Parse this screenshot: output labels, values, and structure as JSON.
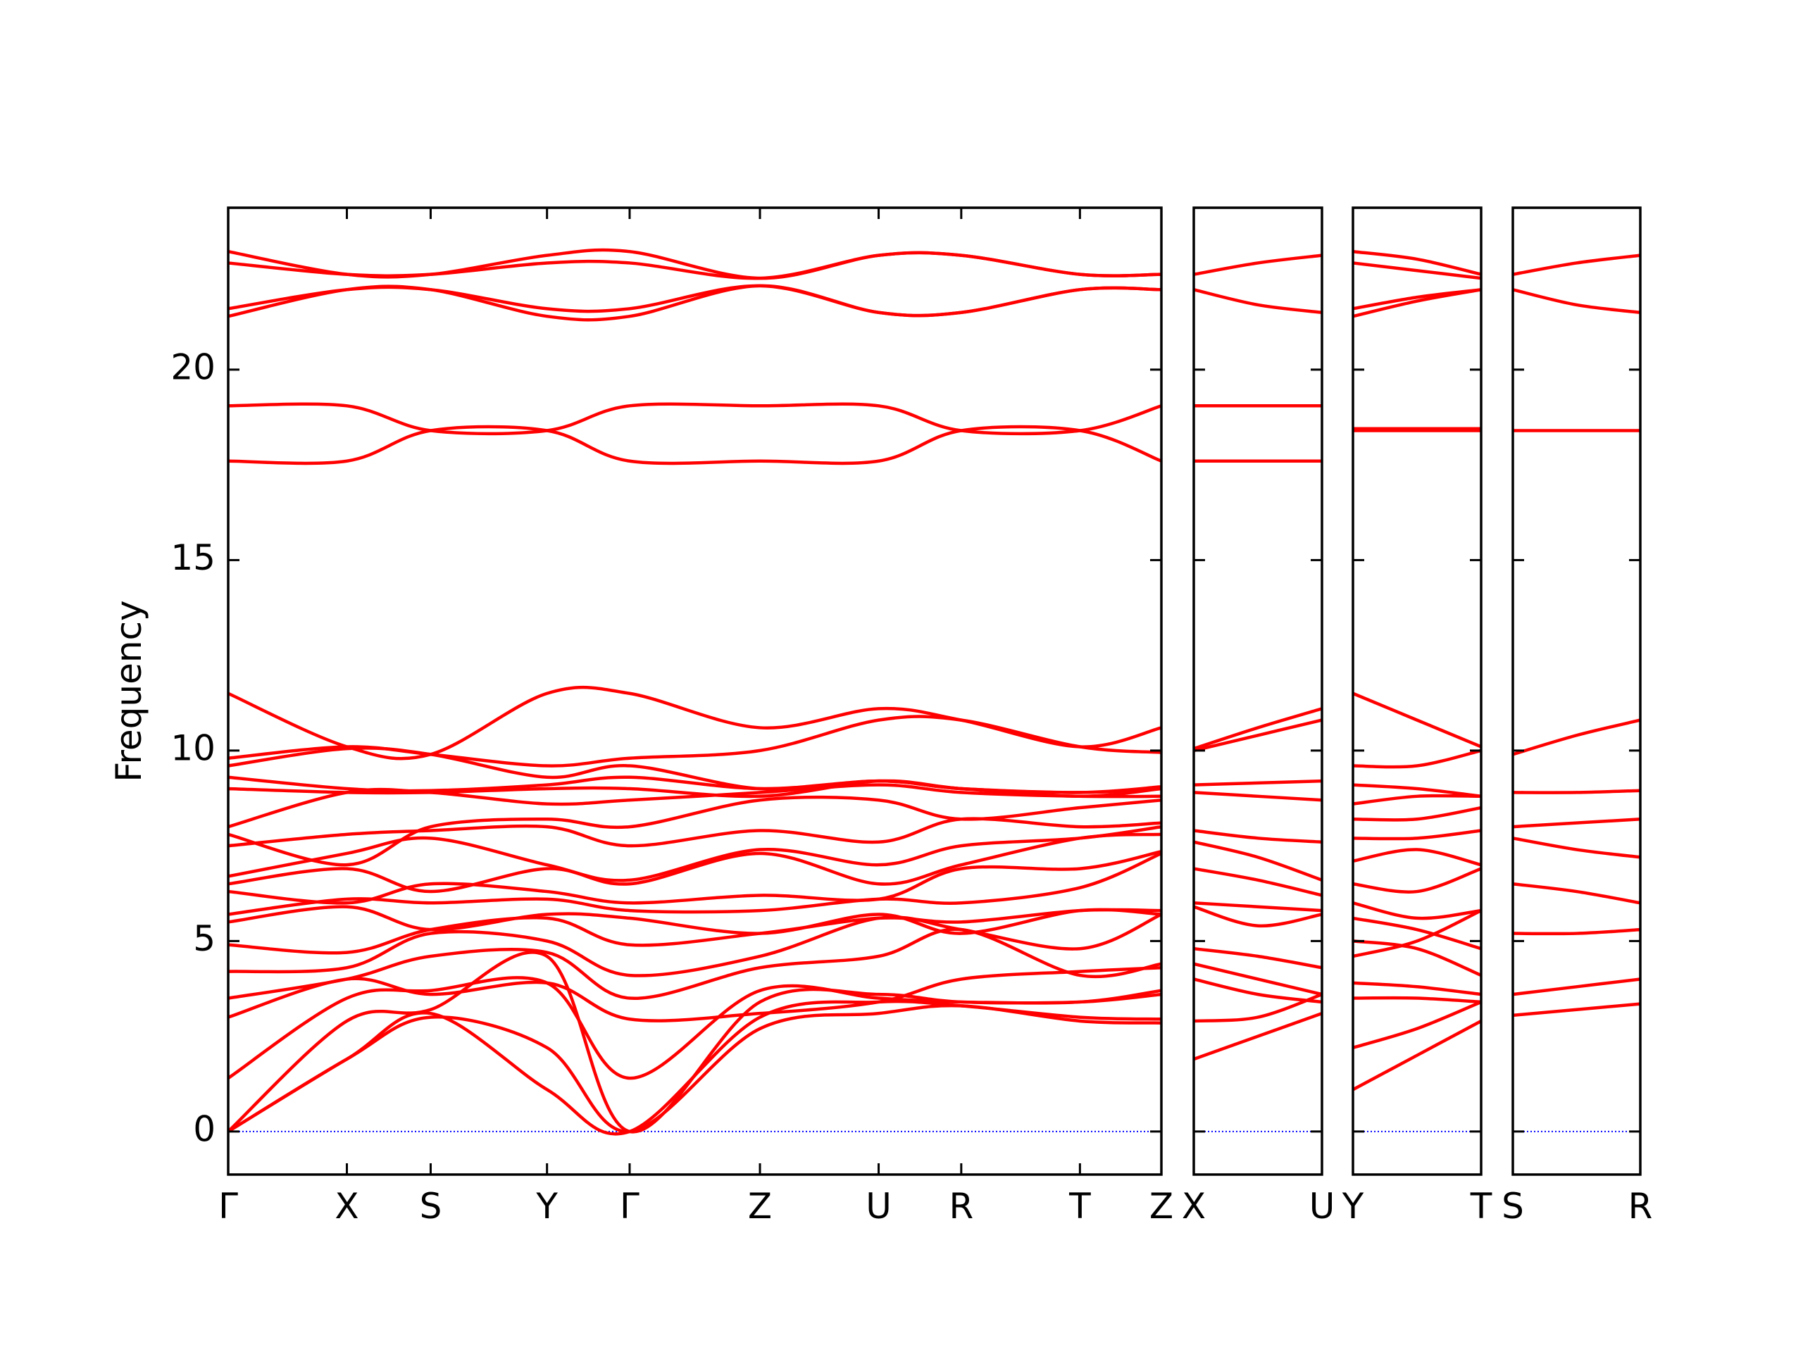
{
  "chart_data": [
    {
      "type": "line",
      "ylabel": "Frequency",
      "color": "#ff0000",
      "hline": 0,
      "hline_color": "#0000ff",
      "xlim": [
        0,
        8.02
      ],
      "ylim": [
        -1.13,
        24.25
      ],
      "yticks": [
        0,
        5,
        10,
        15,
        20
      ],
      "xticks": [
        {
          "value": 0,
          "label": "Γ"
        },
        {
          "value": 1.02,
          "label": "X"
        },
        {
          "value": 1.74,
          "label": "S"
        },
        {
          "value": 2.74,
          "label": "Y"
        },
        {
          "value": 3.45,
          "label": "Γ"
        },
        {
          "value": 4.57,
          "label": "Z"
        },
        {
          "value": 5.59,
          "label": "U"
        },
        {
          "value": 6.3,
          "label": "R"
        },
        {
          "value": 7.32,
          "label": "T"
        },
        {
          "value": 8.02,
          "label": "Z"
        }
      ],
      "x": [
        0,
        1.02,
        1.74,
        2.74,
        3.45,
        4.57,
        5.59,
        6.3,
        7.32,
        8.02
      ],
      "series": [
        {
          "values": [
            23.1,
            22.5,
            22.5,
            23.0,
            23.1,
            22.4,
            23.0,
            23.0,
            22.5,
            22.5
          ]
        },
        {
          "values": [
            22.8,
            22.5,
            22.5,
            22.8,
            22.8,
            22.4,
            23.0,
            23.0,
            22.5,
            22.5
          ]
        },
        {
          "values": [
            21.6,
            22.1,
            22.1,
            21.6,
            21.6,
            22.2,
            21.5,
            21.5,
            22.1,
            22.1
          ]
        },
        {
          "values": [
            21.4,
            22.1,
            22.1,
            21.4,
            21.4,
            22.2,
            21.5,
            21.5,
            22.1,
            22.1
          ]
        },
        {
          "values": [
            19.05,
            19.05,
            18.4,
            18.4,
            19.05,
            19.05,
            19.05,
            18.4,
            18.4,
            19.05
          ]
        },
        {
          "values": [
            17.6,
            17.6,
            18.4,
            18.4,
            17.6,
            17.6,
            17.6,
            18.4,
            18.4,
            17.6
          ]
        },
        {
          "values": [
            0,
            1.9,
            3.0,
            2.2,
            0,
            2.7,
            3.1,
            3.3,
            2.9,
            2.85
          ]
        },
        {
          "values": [
            0,
            1.9,
            3.1,
            1.1,
            0,
            3.0,
            3.4,
            3.3,
            3.0,
            2.95
          ]
        },
        {
          "values": [
            0,
            2.9,
            3.2,
            4.6,
            0,
            3.4,
            3.6,
            3.4,
            3.4,
            3.6
          ]
        },
        {
          "values": [
            1.4,
            3.5,
            3.7,
            3.9,
            1.4,
            3.7,
            3.5,
            3.4,
            3.4,
            3.7
          ]
        },
        {
          "values": [
            3.0,
            4.0,
            3.6,
            3.9,
            2.95,
            3.1,
            3.4,
            4.0,
            4.2,
            4.3
          ]
        },
        {
          "values": [
            3.5,
            4.0,
            4.6,
            4.7,
            3.5,
            4.3,
            4.6,
            5.3,
            4.1,
            4.4
          ]
        },
        {
          "values": [
            4.2,
            4.3,
            5.2,
            5.0,
            4.1,
            4.6,
            5.6,
            5.3,
            4.8,
            5.7
          ]
        },
        {
          "values": [
            4.9,
            4.7,
            5.3,
            5.6,
            4.9,
            5.2,
            5.6,
            5.5,
            5.8,
            5.8
          ]
        },
        {
          "values": [
            5.5,
            5.9,
            5.3,
            5.7,
            5.6,
            5.2,
            5.7,
            5.2,
            5.8,
            5.7
          ]
        },
        {
          "values": [
            5.7,
            6.1,
            6.0,
            6.1,
            5.8,
            5.8,
            6.1,
            6.0,
            6.4,
            7.3
          ]
        },
        {
          "values": [
            6.3,
            6.0,
            6.5,
            6.3,
            6.0,
            6.2,
            6.1,
            6.9,
            6.9,
            7.35
          ]
        },
        {
          "values": [
            6.5,
            6.9,
            6.3,
            6.9,
            6.5,
            7.3,
            6.5,
            7.0,
            7.7,
            7.8
          ]
        },
        {
          "values": [
            6.7,
            7.3,
            7.7,
            7.0,
            6.6,
            7.4,
            7.0,
            7.5,
            7.7,
            8.0
          ]
        },
        {
          "values": [
            7.5,
            7.8,
            7.9,
            8.0,
            7.5,
            7.9,
            7.6,
            8.2,
            8.0,
            8.1
          ]
        },
        {
          "values": [
            7.8,
            7.0,
            8.0,
            8.2,
            8.0,
            8.7,
            8.7,
            8.2,
            8.5,
            8.7
          ]
        },
        {
          "values": [
            8.0,
            8.9,
            8.9,
            8.6,
            8.7,
            8.9,
            9.1,
            8.9,
            8.8,
            8.8
          ]
        },
        {
          "values": [
            9.0,
            8.9,
            8.9,
            9.0,
            9.0,
            8.8,
            9.2,
            9.0,
            8.8,
            9.0
          ]
        },
        {
          "values": [
            9.3,
            9.0,
            8.95,
            9.1,
            9.3,
            9.0,
            9.2,
            9.0,
            8.9,
            9.05
          ]
        },
        {
          "values": [
            9.6,
            10.05,
            9.9,
            9.3,
            9.6,
            9.0,
            9.2,
            9.0,
            8.9,
            9.0
          ]
        },
        {
          "values": [
            9.8,
            10.1,
            9.9,
            9.6,
            9.8,
            10.0,
            10.8,
            10.8,
            10.1,
            9.95
          ]
        },
        {
          "values": [
            11.5,
            10.1,
            9.9,
            11.5,
            11.5,
            10.6,
            11.1,
            10.8,
            10.1,
            10.6
          ]
        }
      ]
    },
    {
      "type": "line",
      "color": "#ff0000",
      "hline": 0,
      "hline_color": "#0000ff",
      "xlim": [
        0,
        1.1
      ],
      "ylim": [
        -1.13,
        24.25
      ],
      "yticks": [
        0,
        5,
        10,
        15,
        20
      ],
      "xticks": [
        {
          "value": 0,
          "label": "X"
        },
        {
          "value": 1.1,
          "label": "U"
        }
      ],
      "x": [
        0,
        0.55,
        1.1
      ],
      "series": [
        {
          "values": [
            22.5,
            22.8,
            23.0
          ]
        },
        {
          "values": [
            22.1,
            21.7,
            21.5
          ]
        },
        {
          "values": [
            19.05,
            19.05,
            19.05
          ]
        },
        {
          "values": [
            17.6,
            17.6,
            17.6
          ]
        },
        {
          "values": [
            10.05,
            10.6,
            11.1
          ]
        },
        {
          "values": [
            10.0,
            10.4,
            10.8
          ]
        },
        {
          "values": [
            9.1,
            9.15,
            9.2
          ]
        },
        {
          "values": [
            8.9,
            8.8,
            8.7
          ]
        },
        {
          "values": [
            7.9,
            7.7,
            7.6
          ]
        },
        {
          "values": [
            7.6,
            7.2,
            6.6
          ]
        },
        {
          "values": [
            6.9,
            6.6,
            6.2
          ]
        },
        {
          "values": [
            6.0,
            5.9,
            5.8
          ]
        },
        {
          "values": [
            5.9,
            5.4,
            5.7
          ]
        },
        {
          "values": [
            4.8,
            4.6,
            4.3
          ]
        },
        {
          "values": [
            4.4,
            4.0,
            3.6
          ]
        },
        {
          "values": [
            4.0,
            3.6,
            3.4
          ]
        },
        {
          "values": [
            2.9,
            3.0,
            3.6
          ]
        },
        {
          "values": [
            1.9,
            2.5,
            3.1
          ]
        }
      ]
    },
    {
      "type": "line",
      "color": "#ff0000",
      "hline": 0,
      "hline_color": "#0000ff",
      "xlim": [
        0,
        1.1
      ],
      "ylim": [
        -1.13,
        24.25
      ],
      "yticks": [
        0,
        5,
        10,
        15,
        20
      ],
      "xticks": [
        {
          "value": 0,
          "label": "Y"
        },
        {
          "value": 1.1,
          "label": "T"
        }
      ],
      "x": [
        0,
        0.55,
        1.1
      ],
      "series": [
        {
          "values": [
            23.1,
            22.9,
            22.5
          ]
        },
        {
          "values": [
            22.8,
            22.6,
            22.4
          ]
        },
        {
          "values": [
            21.6,
            21.9,
            22.1
          ]
        },
        {
          "values": [
            21.4,
            21.8,
            22.1
          ]
        },
        {
          "values": [
            18.45,
            18.45,
            18.45
          ]
        },
        {
          "values": [
            18.4,
            18.4,
            18.4
          ]
        },
        {
          "values": [
            11.5,
            10.8,
            10.1
          ]
        },
        {
          "values": [
            9.6,
            9.6,
            10.0
          ]
        },
        {
          "values": [
            9.1,
            9.0,
            8.8
          ]
        },
        {
          "values": [
            8.6,
            8.8,
            8.8
          ]
        },
        {
          "values": [
            8.2,
            8.2,
            8.5
          ]
        },
        {
          "values": [
            7.7,
            7.7,
            7.9
          ]
        },
        {
          "values": [
            7.1,
            7.4,
            7.0
          ]
        },
        {
          "values": [
            6.5,
            6.3,
            6.9
          ]
        },
        {
          "values": [
            6.0,
            5.6,
            5.8
          ]
        },
        {
          "values": [
            5.6,
            5.3,
            4.8
          ]
        },
        {
          "values": [
            5.0,
            4.8,
            4.1
          ]
        },
        {
          "values": [
            4.6,
            5.0,
            5.8
          ]
        },
        {
          "values": [
            3.9,
            3.8,
            3.6
          ]
        },
        {
          "values": [
            3.5,
            3.5,
            3.4
          ]
        },
        {
          "values": [
            2.2,
            2.7,
            3.4
          ]
        },
        {
          "values": [
            1.1,
            2.0,
            2.9
          ]
        }
      ]
    },
    {
      "type": "line",
      "color": "#ff0000",
      "hline": 0,
      "hline_color": "#0000ff",
      "xlim": [
        0,
        1.1
      ],
      "ylim": [
        -1.13,
        24.25
      ],
      "yticks": [
        0,
        5,
        10,
        15,
        20
      ],
      "xticks": [
        {
          "value": 0,
          "label": "S"
        },
        {
          "value": 1.1,
          "label": "R"
        }
      ],
      "x": [
        0,
        0.55,
        1.1
      ],
      "series": [
        {
          "values": [
            22.5,
            22.8,
            23.0
          ]
        },
        {
          "values": [
            22.1,
            21.7,
            21.5
          ]
        },
        {
          "values": [
            18.4,
            18.4,
            18.4
          ]
        },
        {
          "values": [
            9.9,
            10.4,
            10.8
          ]
        },
        {
          "values": [
            8.9,
            8.9,
            8.95
          ]
        },
        {
          "values": [
            8.0,
            8.1,
            8.2
          ]
        },
        {
          "values": [
            7.7,
            7.4,
            7.2
          ]
        },
        {
          "values": [
            6.5,
            6.3,
            6.0
          ]
        },
        {
          "values": [
            5.2,
            5.2,
            5.3
          ]
        },
        {
          "values": [
            3.6,
            3.8,
            4.0
          ]
        },
        {
          "values": [
            3.05,
            3.2,
            3.35
          ]
        }
      ]
    }
  ]
}
